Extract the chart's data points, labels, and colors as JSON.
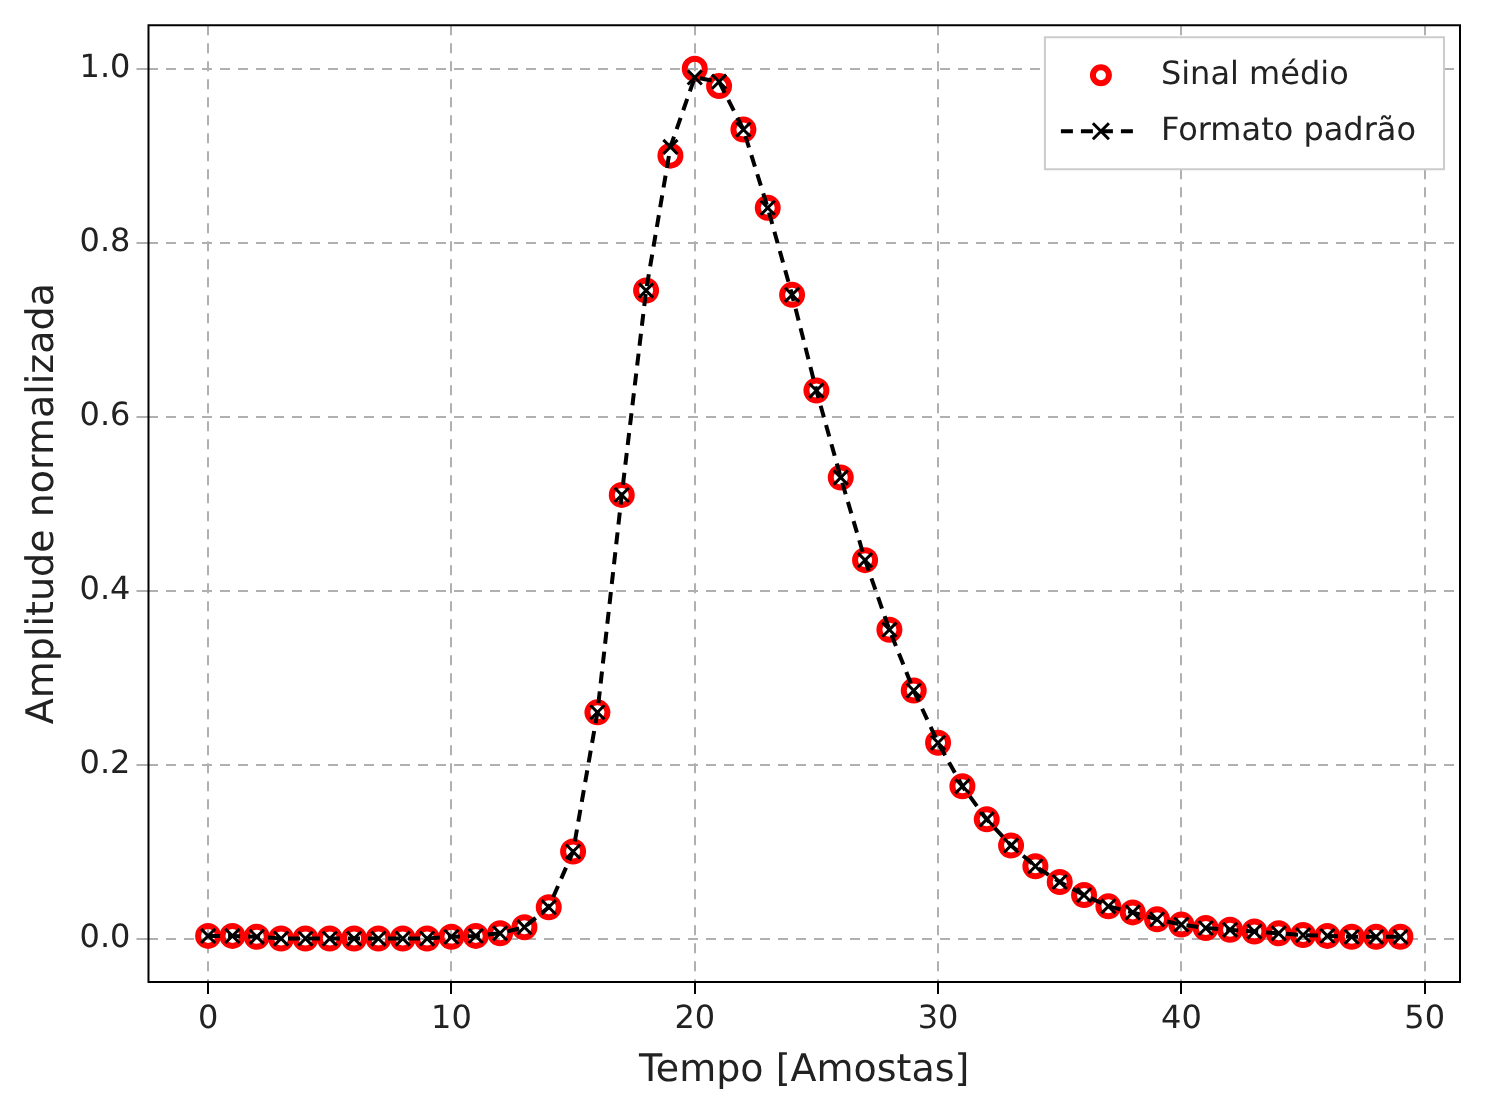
{
  "chart_data": {
    "type": "line",
    "xlabel": "Tempo [Amostas]",
    "ylabel": "Amplitude normalizada",
    "x": [
      0,
      1,
      2,
      3,
      4,
      5,
      6,
      7,
      8,
      9,
      10,
      11,
      12,
      13,
      14,
      15,
      16,
      17,
      18,
      19,
      20,
      21,
      22,
      23,
      24,
      25,
      26,
      27,
      28,
      29,
      30,
      31,
      32,
      33,
      34,
      35,
      36,
      37,
      38,
      39,
      40,
      41,
      42,
      43,
      44,
      45,
      46,
      47,
      48,
      49
    ],
    "series": [
      {
        "name": "Sinal médio",
        "type": "scatter",
        "marker": "circle",
        "color": "#ff0000",
        "values": [
          0.003,
          0.003,
          0.002,
          0.0,
          0.0,
          0.0,
          0.0,
          0.0,
          0.0,
          0.0,
          0.002,
          0.003,
          0.006,
          0.013,
          0.036,
          0.1,
          0.26,
          0.51,
          0.745,
          0.9,
          1.0,
          0.98,
          0.93,
          0.84,
          0.74,
          0.63,
          0.53,
          0.435,
          0.355,
          0.285,
          0.225,
          0.175,
          0.137,
          0.107,
          0.083,
          0.065,
          0.05,
          0.037,
          0.03,
          0.022,
          0.016,
          0.012,
          0.01,
          0.008,
          0.006,
          0.004,
          0.003,
          0.002,
          0.002,
          0.002
        ]
      },
      {
        "name": "Formato padrão",
        "type": "line",
        "marker": "cross",
        "line_style": "dashed",
        "color": "#000000",
        "values": [
          0.003,
          0.003,
          0.002,
          0.0,
          0.0,
          0.0,
          0.0,
          0.0,
          0.0,
          0.0,
          0.002,
          0.003,
          0.006,
          0.013,
          0.036,
          0.1,
          0.26,
          0.51,
          0.745,
          0.91,
          0.99,
          0.985,
          0.93,
          0.84,
          0.74,
          0.63,
          0.53,
          0.435,
          0.355,
          0.285,
          0.225,
          0.175,
          0.137,
          0.107,
          0.083,
          0.065,
          0.05,
          0.037,
          0.03,
          0.022,
          0.016,
          0.012,
          0.01,
          0.008,
          0.006,
          0.004,
          0.003,
          0.002,
          0.002,
          0.002
        ]
      }
    ],
    "xlim": [
      -2.45,
      51.45
    ],
    "xticks": [
      0,
      10,
      20,
      30,
      40,
      50
    ],
    "ylim": [
      -0.05,
      1.05
    ],
    "yticks": [
      {
        "value": 0,
        "label": "0.0"
      },
      {
        "value": 0.2,
        "label": "0.2"
      },
      {
        "value": 0.4,
        "label": "0.4"
      },
      {
        "value": 0.6,
        "label": "0.6"
      },
      {
        "value": 0.8,
        "label": "0.8"
      },
      {
        "value": 1.0,
        "label": "1.0"
      }
    ],
    "grid": true,
    "legend": "top right"
  }
}
